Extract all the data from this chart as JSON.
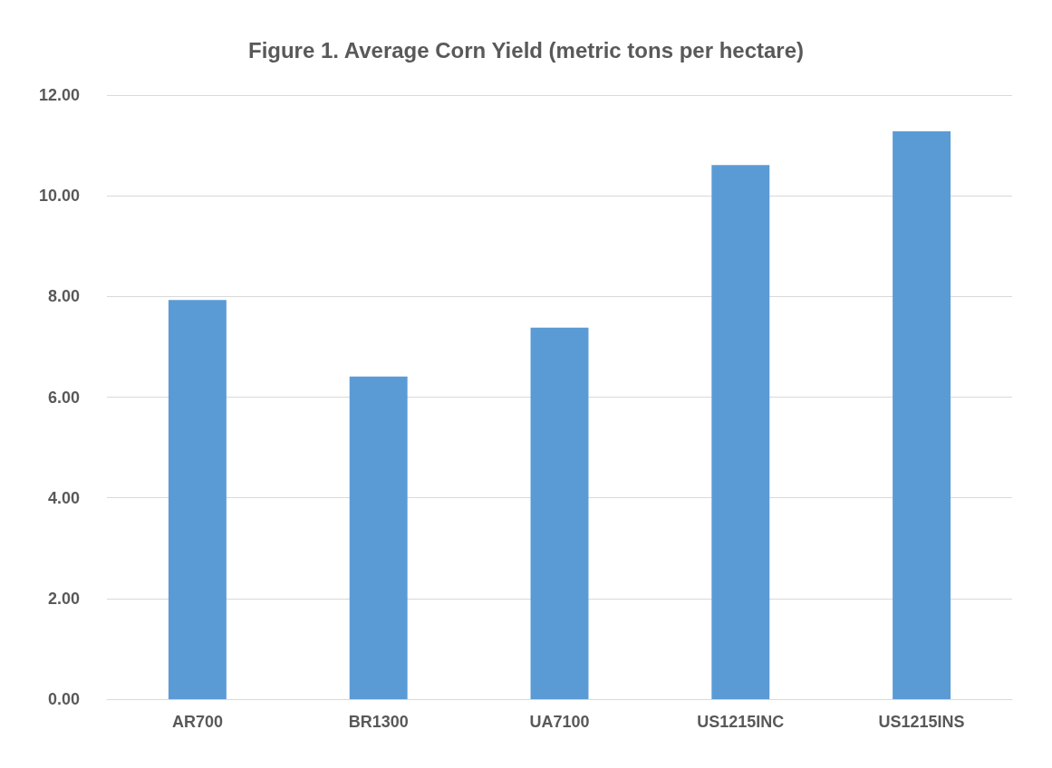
{
  "chart_data": {
    "type": "bar",
    "title": "Figure 1. Average Corn Yield (metric tons per hectare)",
    "categories": [
      "AR700",
      "BR1300",
      "UA7100",
      "US1215INC",
      "US1215INS"
    ],
    "values": [
      7.93,
      6.41,
      7.38,
      10.61,
      11.28
    ],
    "color": "#5b9bd5",
    "ylim": [
      0,
      12
    ],
    "yticks": [
      {
        "value": 0,
        "label": "0.00"
      },
      {
        "value": 2,
        "label": "2.00"
      },
      {
        "value": 4,
        "label": "4.00"
      },
      {
        "value": 6,
        "label": "6.00"
      },
      {
        "value": 8,
        "label": "8.00"
      },
      {
        "value": 10,
        "label": "10.00"
      },
      {
        "value": 12,
        "label": "12.00"
      }
    ],
    "grid": true
  }
}
